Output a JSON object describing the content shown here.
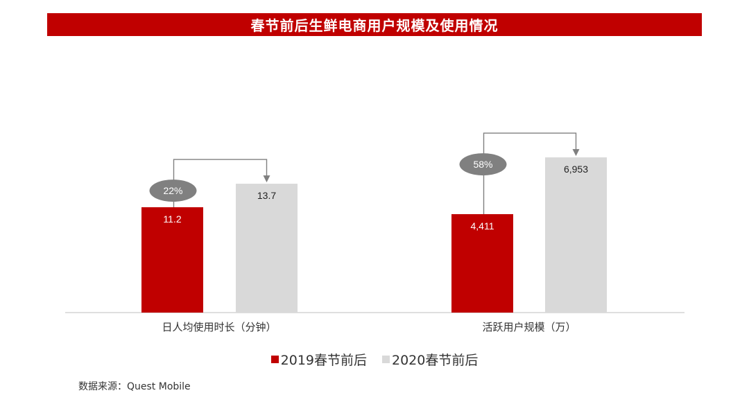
{
  "title": "春节前后生鲜电商用户规模及使用情况",
  "colors": {
    "title_bg": "#c00000",
    "series_2019": "#c00000",
    "series_2020": "#d9d9d9",
    "badge": "#808080",
    "connector": "#7f7f7f"
  },
  "chart_data": {
    "type": "bar",
    "groups": [
      {
        "category": "日人均使用时长（分钟）",
        "values": [
          11.2,
          13.7
        ],
        "labels": [
          "11.2",
          "13.7"
        ],
        "growth": "22%",
        "ylim": [
          0,
          28
        ]
      },
      {
        "category": "活跃用户规模（万）",
        "values": [
          4411,
          6953
        ],
        "labels": [
          "4,411",
          "6,953"
        ],
        "growth": "58%",
        "ylim": [
          0,
          11800
        ]
      }
    ],
    "series": [
      {
        "name": "2019春节前后"
      },
      {
        "name": "2020春节前后"
      }
    ]
  },
  "source": "数据来源：Quest Mobile"
}
